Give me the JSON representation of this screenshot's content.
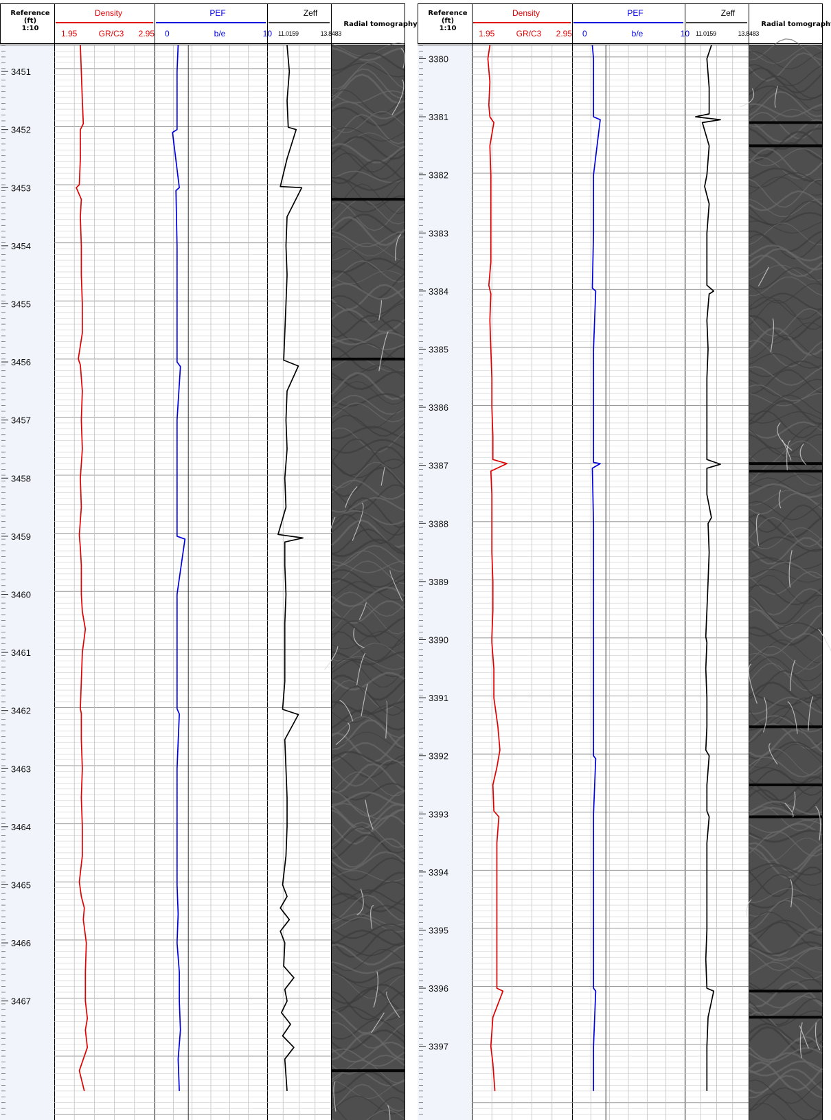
{
  "colors": {
    "density": "#e00000",
    "pef": "#0000dd",
    "zeff": "#000000",
    "ref_track_bg": "#f1f4fa",
    "grid_line": "#bdbdbd"
  },
  "header": {
    "reference_label": "Reference",
    "reference_unit": "(ft)",
    "reference_scale": "1:10",
    "radial_label": "Radial tomography",
    "density": {
      "name": "Density",
      "min": "1.95",
      "unit": "GR/C3",
      "max": "2.95"
    },
    "pef": {
      "name": "PEF",
      "min": "0",
      "unit": "b/e",
      "max": "10"
    },
    "zeff": {
      "name": "Zeff",
      "min": "11.0159",
      "max": "13.8483"
    }
  },
  "chart_data": [
    {
      "type": "line",
      "panel": "left",
      "depth_unit": "ft",
      "depth_range": [
        3450.55,
        3468.55
      ],
      "depth_ticks": [
        3451,
        3452,
        3453,
        3454,
        3455,
        3456,
        3457,
        3458,
        3459,
        3460,
        3461,
        3462,
        3463,
        3464,
        3465,
        3466,
        3467
      ],
      "tick_labels": [
        "3451",
        "3452",
        "3453",
        "3454",
        "3455",
        "3456",
        "3457",
        "3458",
        "3459",
        "3460",
        "3461",
        "3462",
        "3463",
        "3464",
        "3465",
        "3466",
        "3467"
      ],
      "series": [
        {
          "name": "Density",
          "unit": "GR/C3",
          "range": [
            1.95,
            2.95
          ],
          "depth": [
            3450.55,
            3451.0,
            3451.5,
            3451.9,
            3452.0,
            3452.5,
            3452.95,
            3453.0,
            3453.2,
            3453.5,
            3454.0,
            3454.5,
            3455.0,
            3455.5,
            3455.95,
            3456.05,
            3456.5,
            3457.0,
            3457.5,
            3458.0,
            3458.5,
            3458.98,
            3459.2,
            3459.5,
            3460.0,
            3460.3,
            3460.6,
            3461.0,
            3461.5,
            3461.97,
            3462.05,
            3462.5,
            3463.0,
            3463.5,
            3464.0,
            3464.5,
            3464.95,
            3465.2,
            3465.4,
            3465.6,
            3466.0,
            3466.5,
            3467.0,
            3467.3,
            3467.5,
            3467.8,
            3468.2,
            3468.55
          ],
          "values": [
            2.21,
            2.22,
            2.23,
            2.24,
            2.21,
            2.21,
            2.2,
            2.17,
            2.22,
            2.21,
            2.22,
            2.22,
            2.23,
            2.23,
            2.19,
            2.21,
            2.23,
            2.22,
            2.23,
            2.21,
            2.22,
            2.2,
            2.21,
            2.22,
            2.22,
            2.23,
            2.26,
            2.23,
            2.22,
            2.21,
            2.22,
            2.22,
            2.23,
            2.22,
            2.23,
            2.23,
            2.2,
            2.22,
            2.25,
            2.24,
            2.27,
            2.26,
            2.26,
            2.28,
            2.26,
            2.28,
            2.2,
            2.25
          ]
        },
        {
          "name": "PEF",
          "unit": "b/e",
          "range": [
            0,
            10
          ],
          "depth": [
            3450.55,
            3451.0,
            3452.0,
            3452.05,
            3453.0,
            3453.05,
            3454.0,
            3455.0,
            3456.0,
            3456.08,
            3457.0,
            3458.0,
            3459.0,
            3459.05,
            3460.0,
            3461.0,
            3461.97,
            3462.06,
            3463.0,
            3464.0,
            3465.0,
            3465.5,
            3466.0,
            3466.5,
            3467.0,
            3467.5,
            3468.0,
            3468.55
          ],
          "values": [
            2.1,
            2.0,
            2.0,
            1.6,
            2.2,
            1.9,
            2.0,
            2.0,
            2.0,
            2.3,
            2.0,
            2.0,
            2.0,
            2.7,
            2.0,
            2.0,
            2.0,
            2.2,
            2.0,
            2.0,
            2.0,
            2.1,
            2.0,
            2.2,
            2.2,
            2.3,
            2.1,
            2.2
          ]
        },
        {
          "name": "Zeff",
          "range": [
            11.0159,
            13.8483
          ],
          "depth": [
            3450.55,
            3451.0,
            3451.5,
            3451.96,
            3452.0,
            3452.5,
            3452.98,
            3453.0,
            3453.5,
            3454.0,
            3454.5,
            3455.0,
            3455.97,
            3456.07,
            3456.5,
            3457.0,
            3457.5,
            3458.0,
            3458.5,
            3458.97,
            3459.03,
            3459.1,
            3459.5,
            3460.0,
            3460.5,
            3461.0,
            3461.5,
            3461.98,
            3462.07,
            3462.5,
            3463.0,
            3463.5,
            3464.0,
            3464.5,
            3465.0,
            3465.2,
            3465.4,
            3465.6,
            3465.8,
            3466.0,
            3466.4,
            3466.6,
            3466.8,
            3467.0,
            3467.2,
            3467.4,
            3467.6,
            3467.8,
            3468.0,
            3468.55
          ],
          "values": [
            11.9,
            12.0,
            11.9,
            11.95,
            12.3,
            11.9,
            11.6,
            12.55,
            11.9,
            11.85,
            11.9,
            11.85,
            11.75,
            12.4,
            11.9,
            11.85,
            11.9,
            11.8,
            11.85,
            11.5,
            12.6,
            11.8,
            11.8,
            11.85,
            11.8,
            11.8,
            11.8,
            11.7,
            12.4,
            11.8,
            11.85,
            11.9,
            11.9,
            11.85,
            11.7,
            11.9,
            11.6,
            12.0,
            11.6,
            11.8,
            11.75,
            12.2,
            11.8,
            11.9,
            11.65,
            12.05,
            11.7,
            12.2,
            11.8,
            11.9
          ]
        }
      ]
    },
    {
      "type": "line",
      "panel": "right",
      "depth_unit": "ft",
      "depth_range": [
        3379.77,
        3397.77
      ],
      "depth_ticks": [
        3380,
        3381,
        3382,
        3383,
        3384,
        3385,
        3386,
        3387,
        3388,
        3389,
        3390,
        3391,
        3392,
        3393,
        3394,
        3395,
        3396,
        3397
      ],
      "tick_labels": [
        "3380",
        "3381",
        "3382",
        "3383",
        "3384",
        "3385",
        "3386",
        "3387",
        "3388",
        "3389",
        "3390",
        "3391",
        "3392",
        "3393",
        "3394",
        "3395",
        "3396",
        "3397"
      ],
      "series": [
        {
          "name": "Density",
          "unit": "GR/C3",
          "range": [
            1.95,
            2.95
          ],
          "depth": [
            3379.77,
            3380.0,
            3380.4,
            3380.8,
            3381.0,
            3381.1,
            3381.5,
            3382.0,
            3382.5,
            3383.0,
            3383.5,
            3383.9,
            3384.05,
            3384.5,
            3385.0,
            3385.5,
            3386.0,
            3386.5,
            3386.9,
            3386.97,
            3387.1,
            3387.5,
            3388.0,
            3388.5,
            3389.0,
            3389.5,
            3389.95,
            3390.05,
            3390.5,
            3391.0,
            3391.5,
            3391.9,
            3392.2,
            3392.5,
            3392.95,
            3393.05,
            3393.5,
            3394.0,
            3394.5,
            3395.0,
            3395.5,
            3396.0,
            3396.05,
            3396.5,
            3397.0,
            3397.3,
            3397.77
          ],
          "values": [
            2.13,
            2.11,
            2.13,
            2.12,
            2.13,
            2.17,
            2.13,
            2.14,
            2.14,
            2.14,
            2.14,
            2.12,
            2.14,
            2.13,
            2.14,
            2.15,
            2.15,
            2.16,
            2.16,
            2.3,
            2.14,
            2.15,
            2.15,
            2.15,
            2.16,
            2.16,
            2.15,
            2.15,
            2.17,
            2.17,
            2.21,
            2.23,
            2.2,
            2.16,
            2.17,
            2.22,
            2.2,
            2.2,
            2.2,
            2.2,
            2.2,
            2.2,
            2.26,
            2.16,
            2.14,
            2.16,
            2.18
          ]
        },
        {
          "name": "PEF",
          "unit": "b/e",
          "range": [
            0,
            10
          ],
          "depth": [
            3379.77,
            3380.0,
            3381.0,
            3381.05,
            3382.0,
            3383.0,
            3383.95,
            3384.0,
            3385.0,
            3386.0,
            3386.95,
            3386.97,
            3387.05,
            3388.0,
            3389.0,
            3390.0,
            3391.0,
            3392.0,
            3392.05,
            3393.0,
            3394.0,
            3395.0,
            3396.0,
            3396.05,
            3397.0,
            3397.77
          ],
          "values": [
            1.8,
            1.9,
            1.9,
            2.5,
            1.9,
            1.9,
            1.8,
            2.1,
            1.9,
            1.9,
            1.9,
            2.5,
            1.8,
            1.9,
            1.9,
            1.9,
            1.9,
            1.9,
            2.1,
            1.9,
            1.9,
            1.9,
            1.9,
            2.1,
            1.9,
            1.9
          ]
        },
        {
          "name": "Zeff",
          "range": [
            11.0159,
            13.8483
          ],
          "depth": [
            3379.77,
            3380.0,
            3380.5,
            3380.95,
            3381.0,
            3381.05,
            3381.1,
            3381.5,
            3382.0,
            3382.2,
            3382.5,
            3383.0,
            3383.5,
            3383.9,
            3384.0,
            3384.05,
            3384.5,
            3385.0,
            3385.5,
            3386.0,
            3386.5,
            3386.9,
            3386.98,
            3387.05,
            3387.5,
            3387.9,
            3388.0,
            3388.5,
            3389.0,
            3389.5,
            3389.95,
            3390.05,
            3390.5,
            3391.0,
            3391.5,
            3391.9,
            3392.0,
            3392.5,
            3392.95,
            3393.05,
            3393.5,
            3394.0,
            3394.5,
            3395.0,
            3395.5,
            3396.0,
            3396.05,
            3396.5,
            3397.0,
            3397.77
          ],
          "values": [
            12.2,
            12.0,
            12.1,
            12.1,
            11.5,
            12.6,
            11.8,
            12.1,
            12.0,
            11.9,
            12.1,
            12.0,
            12.0,
            12.0,
            12.3,
            12.1,
            12.0,
            12.05,
            12.0,
            12.0,
            12.0,
            12.0,
            12.6,
            12.0,
            12.0,
            12.2,
            12.05,
            12.1,
            12.05,
            12.0,
            11.95,
            12.0,
            11.95,
            12.0,
            12.0,
            11.95,
            12.1,
            12.0,
            12.0,
            12.1,
            12.0,
            12.0,
            12.0,
            12.0,
            11.95,
            12.0,
            12.3,
            12.05,
            12.0,
            12.0
          ]
        }
      ]
    }
  ]
}
